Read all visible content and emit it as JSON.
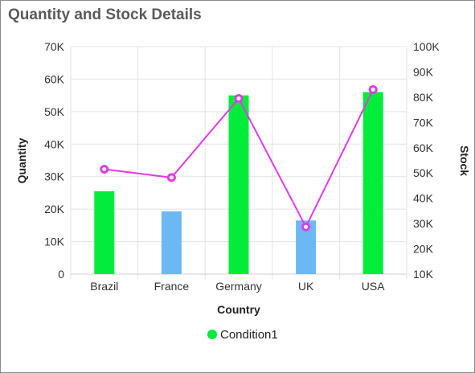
{
  "header": {
    "title": "Quantity and Stock Details"
  },
  "chart_data": {
    "type": "bar",
    "categories": [
      "Brazil",
      "France",
      "Germany",
      "UK",
      "USA"
    ],
    "xlabel": "Country",
    "ylabel": "Quantity",
    "y2label": "Stock",
    "ylim": [
      0,
      70000
    ],
    "y2lim": [
      10000,
      100000
    ],
    "yticks": [
      "0",
      "10K",
      "20K",
      "30K",
      "40K",
      "50K",
      "60K",
      "70K"
    ],
    "y2ticks": [
      "10K",
      "20K",
      "30K",
      "40K",
      "50K",
      "60K",
      "70K",
      "80K",
      "90K",
      "100K"
    ],
    "grid": true,
    "series": [
      {
        "kind": "bar",
        "axis": "left",
        "values": [
          25500,
          19300,
          55000,
          16500,
          56000
        ],
        "conditions": [
          "Condition1",
          "",
          "Condition1",
          "",
          "Condition1"
        ]
      },
      {
        "kind": "line",
        "axis": "right",
        "values": [
          51500,
          48200,
          79500,
          28700,
          83000
        ]
      }
    ],
    "legend": {
      "position": "bottom",
      "items": [
        {
          "label": "Condition1",
          "color": "#00ee3a"
        }
      ]
    },
    "colors": {
      "condition": "#00ee3a",
      "default_bar": "#6cb8f5",
      "line": "#e33ae8",
      "grid": "#e3e3e3"
    }
  }
}
